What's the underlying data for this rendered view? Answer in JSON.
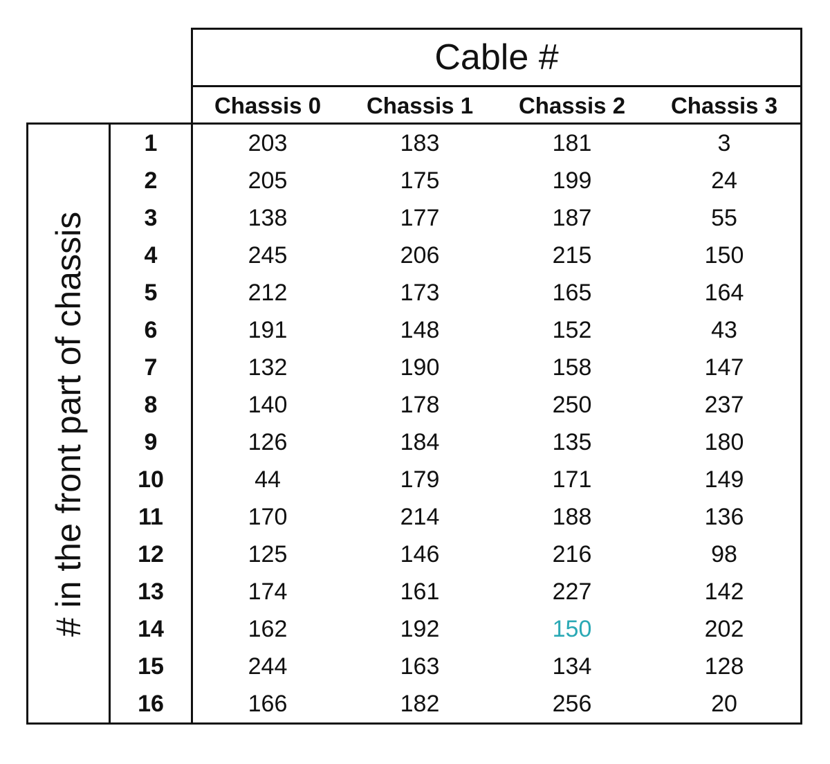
{
  "chart_data": {
    "type": "table",
    "title": "Cable #",
    "row_axis_label": "# in the front part of chassis",
    "columns": [
      "Chassis 0",
      "Chassis 1",
      "Chassis 2",
      "Chassis 3"
    ],
    "rows": [
      {
        "index": "1",
        "values": [
          "203",
          "183",
          "181",
          "3"
        ]
      },
      {
        "index": "2",
        "values": [
          "205",
          "175",
          "199",
          "24"
        ]
      },
      {
        "index": "3",
        "values": [
          "138",
          "177",
          "187",
          "55"
        ]
      },
      {
        "index": "4",
        "values": [
          "245",
          "206",
          "215",
          "150"
        ]
      },
      {
        "index": "5",
        "values": [
          "212",
          "173",
          "165",
          "164"
        ]
      },
      {
        "index": "6",
        "values": [
          "191",
          "148",
          "152",
          "43"
        ]
      },
      {
        "index": "7",
        "values": [
          "132",
          "190",
          "158",
          "147"
        ]
      },
      {
        "index": "8",
        "values": [
          "140",
          "178",
          "250",
          "237"
        ]
      },
      {
        "index": "9",
        "values": [
          "126",
          "184",
          "135",
          "180"
        ]
      },
      {
        "index": "10",
        "values": [
          "44",
          "179",
          "171",
          "149"
        ]
      },
      {
        "index": "11",
        "values": [
          "170",
          "214",
          "188",
          "136"
        ]
      },
      {
        "index": "12",
        "values": [
          "125",
          "146",
          "216",
          "98"
        ]
      },
      {
        "index": "13",
        "values": [
          "174",
          "161",
          "227",
          "142"
        ]
      },
      {
        "index": "14",
        "values": [
          "162",
          "192",
          "150",
          "202"
        ]
      },
      {
        "index": "15",
        "values": [
          "244",
          "163",
          "134",
          "128"
        ]
      },
      {
        "index": "16",
        "values": [
          "166",
          "182",
          "256",
          "20"
        ]
      }
    ],
    "highlight": {
      "row": 13,
      "col": 2,
      "color": "#2aa9b5"
    }
  }
}
